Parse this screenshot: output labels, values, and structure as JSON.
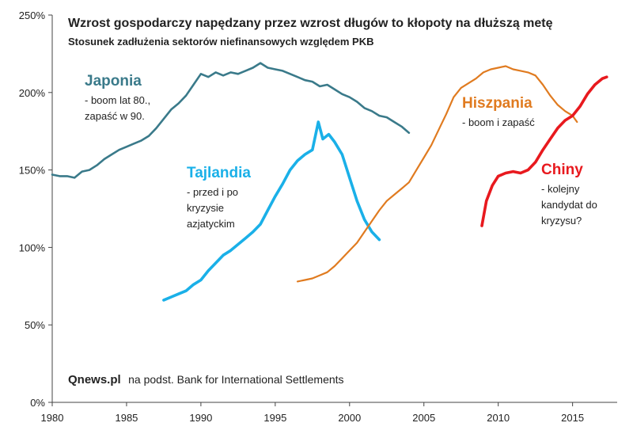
{
  "chart_data": {
    "type": "line",
    "title": "Wzrost gospodarczy napędzany przez wzrost długów to kłopoty na dłuższą metę",
    "subtitle": "Stosunek zadłużenia sektorów niefinansowych względem PKB",
    "xlabel": "",
    "ylabel": "",
    "xlim": [
      1980,
      2018
    ],
    "ylim": [
      0,
      250
    ],
    "x_ticks": [
      "1980",
      "1985",
      "1990",
      "1995",
      "2000",
      "2005",
      "2010",
      "2015"
    ],
    "y_ticks": [
      "0%",
      "50%",
      "100%",
      "150%",
      "200%",
      "250%"
    ],
    "grid": false,
    "series": [
      {
        "name": "Japonia",
        "color": "#3a7a8a",
        "notes": [
          "- boom lat 80.,",
          "zapaść w 90."
        ],
        "points": [
          [
            1980,
            147
          ],
          [
            1980.5,
            146
          ],
          [
            1981,
            146
          ],
          [
            1981.5,
            145
          ],
          [
            1982,
            149
          ],
          [
            1982.5,
            150
          ],
          [
            1983,
            153
          ],
          [
            1983.5,
            157
          ],
          [
            1984,
            160
          ],
          [
            1984.5,
            163
          ],
          [
            1985,
            165
          ],
          [
            1985.5,
            167
          ],
          [
            1986,
            169
          ],
          [
            1986.5,
            172
          ],
          [
            1987,
            177
          ],
          [
            1987.5,
            183
          ],
          [
            1988,
            189
          ],
          [
            1988.5,
            193
          ],
          [
            1989,
            198
          ],
          [
            1989.5,
            205
          ],
          [
            1990,
            212
          ],
          [
            1990.5,
            210
          ],
          [
            1991,
            213
          ],
          [
            1991.5,
            211
          ],
          [
            1992,
            213
          ],
          [
            1992.5,
            212
          ],
          [
            1993,
            214
          ],
          [
            1993.5,
            216
          ],
          [
            1994,
            219
          ],
          [
            1994.5,
            216
          ],
          [
            1995,
            215
          ],
          [
            1995.5,
            214
          ],
          [
            1996,
            212
          ],
          [
            1996.5,
            210
          ],
          [
            1997,
            208
          ],
          [
            1997.5,
            207
          ],
          [
            1998,
            204
          ],
          [
            1998.5,
            205
          ],
          [
            1999,
            202
          ],
          [
            1999.5,
            199
          ],
          [
            2000,
            197
          ],
          [
            2000.5,
            194
          ],
          [
            2001,
            190
          ],
          [
            2001.5,
            188
          ],
          [
            2002,
            185
          ],
          [
            2002.5,
            184
          ],
          [
            2003,
            181
          ],
          [
            2003.5,
            178
          ],
          [
            2004,
            174
          ]
        ]
      },
      {
        "name": "Tajlandia",
        "color": "#1ab0e8",
        "notes": [
          "- przed i po",
          "kryzysie",
          "azjatyckim"
        ],
        "points": [
          [
            1987.5,
            66
          ],
          [
            1988,
            68
          ],
          [
            1988.5,
            70
          ],
          [
            1989,
            72
          ],
          [
            1989.5,
            76
          ],
          [
            1990,
            79
          ],
          [
            1990.5,
            85
          ],
          [
            1991,
            90
          ],
          [
            1991.5,
            95
          ],
          [
            1992,
            98
          ],
          [
            1992.5,
            102
          ],
          [
            1993,
            106
          ],
          [
            1993.5,
            110
          ],
          [
            1994,
            115
          ],
          [
            1994.5,
            124
          ],
          [
            1995,
            133
          ],
          [
            1995.5,
            141
          ],
          [
            1996,
            150
          ],
          [
            1996.5,
            156
          ],
          [
            1997,
            160
          ],
          [
            1997.5,
            163
          ],
          [
            1997.9,
            181
          ],
          [
            1998.2,
            170
          ],
          [
            1998.6,
            173
          ],
          [
            1999,
            168
          ],
          [
            1999.5,
            160
          ],
          [
            2000,
            145
          ],
          [
            2000.5,
            130
          ],
          [
            2001,
            118
          ],
          [
            2001.5,
            110
          ],
          [
            2002,
            105
          ]
        ]
      },
      {
        "name": "Hiszpania",
        "color": "#e07b20",
        "notes": [
          "- boom i zapaść"
        ],
        "points": [
          [
            1996.5,
            78
          ],
          [
            1997,
            79
          ],
          [
            1997.5,
            80
          ],
          [
            1998,
            82
          ],
          [
            1998.5,
            84
          ],
          [
            1999,
            88
          ],
          [
            1999.5,
            93
          ],
          [
            2000,
            98
          ],
          [
            2000.5,
            103
          ],
          [
            2001,
            110
          ],
          [
            2001.5,
            117
          ],
          [
            2002,
            124
          ],
          [
            2002.5,
            130
          ],
          [
            2003,
            134
          ],
          [
            2003.5,
            138
          ],
          [
            2004,
            142
          ],
          [
            2004.5,
            150
          ],
          [
            2005,
            158
          ],
          [
            2005.5,
            166
          ],
          [
            2006,
            176
          ],
          [
            2006.5,
            186
          ],
          [
            2007,
            197
          ],
          [
            2007.5,
            203
          ],
          [
            2008,
            206
          ],
          [
            2008.5,
            209
          ],
          [
            2009,
            213
          ],
          [
            2009.5,
            215
          ],
          [
            2010,
            216
          ],
          [
            2010.5,
            217
          ],
          [
            2011,
            215
          ],
          [
            2011.5,
            214
          ],
          [
            2012,
            213
          ],
          [
            2012.5,
            211
          ],
          [
            2013,
            205
          ],
          [
            2013.5,
            198
          ],
          [
            2014,
            192
          ],
          [
            2014.5,
            188
          ],
          [
            2015,
            185
          ],
          [
            2015.3,
            181
          ]
        ]
      },
      {
        "name": "Chiny",
        "color": "#e8191e",
        "notes": [
          "- kolejny",
          "kandydat do",
          "kryzysu?"
        ],
        "points": [
          [
            2008.9,
            114
          ],
          [
            2009.2,
            130
          ],
          [
            2009.6,
            140
          ],
          [
            2010,
            146
          ],
          [
            2010.5,
            148
          ],
          [
            2011,
            149
          ],
          [
            2011.5,
            148
          ],
          [
            2012,
            150
          ],
          [
            2012.5,
            155
          ],
          [
            2013,
            163
          ],
          [
            2013.5,
            170
          ],
          [
            2014,
            177
          ],
          [
            2014.5,
            182
          ],
          [
            2015,
            185
          ],
          [
            2015.5,
            191
          ],
          [
            2016,
            199
          ],
          [
            2016.5,
            205
          ],
          [
            2017,
            209
          ],
          [
            2017.3,
            210
          ]
        ]
      }
    ]
  },
  "source": {
    "brand": "Qnews.pl",
    "text": "na podst. Bank for International Settlements"
  }
}
